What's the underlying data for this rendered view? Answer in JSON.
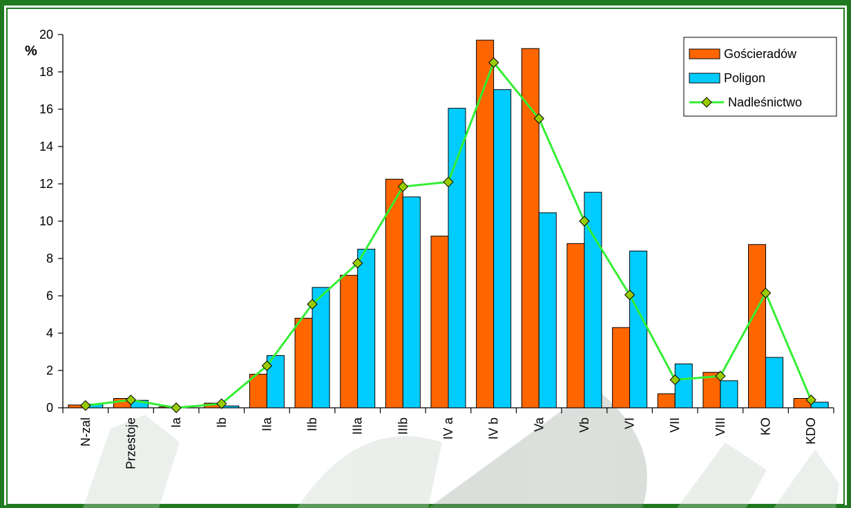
{
  "chart_data": {
    "type": "bar",
    "ylabel": "%",
    "ylim": [
      0,
      20
    ],
    "yticks": [
      "0",
      "2",
      "4",
      "6",
      "8",
      "10",
      "12",
      "14",
      "16",
      "18",
      "20"
    ],
    "categories": [
      "N-zal",
      "Przestoje",
      "Ia",
      "Ib",
      "IIa",
      "IIb",
      "IIIa",
      "IIIb",
      "IV a",
      "IV b",
      "Va",
      "Vb",
      "VI",
      "VII",
      "VIII",
      "KO",
      "KDO"
    ],
    "series": [
      {
        "name": "Gościeradów",
        "type": "bar",
        "color": "#ff6600",
        "values": [
          0.15,
          0.5,
          0.05,
          0.25,
          1.8,
          4.8,
          7.1,
          12.25,
          9.2,
          19.7,
          19.25,
          8.8,
          4.3,
          0.75,
          1.9,
          8.75,
          0.5
        ]
      },
      {
        "name": "Poligon",
        "type": "bar",
        "color": "#00ccff",
        "values": [
          0.2,
          0.4,
          0.0,
          0.1,
          2.8,
          6.45,
          8.5,
          11.3,
          16.05,
          17.05,
          10.45,
          11.55,
          8.4,
          2.35,
          1.45,
          2.7,
          0.3
        ]
      },
      {
        "name": "Nadleśnictwo",
        "type": "line",
        "color": "#33ee33",
        "marker_color": "#99cc00",
        "values": [
          0.12,
          0.42,
          0.0,
          0.22,
          2.25,
          5.55,
          7.75,
          11.85,
          12.1,
          18.5,
          15.5,
          10.0,
          6.05,
          1.5,
          1.7,
          6.15,
          0.42
        ]
      }
    ],
    "legend_position": "top-right",
    "grid": false
  }
}
